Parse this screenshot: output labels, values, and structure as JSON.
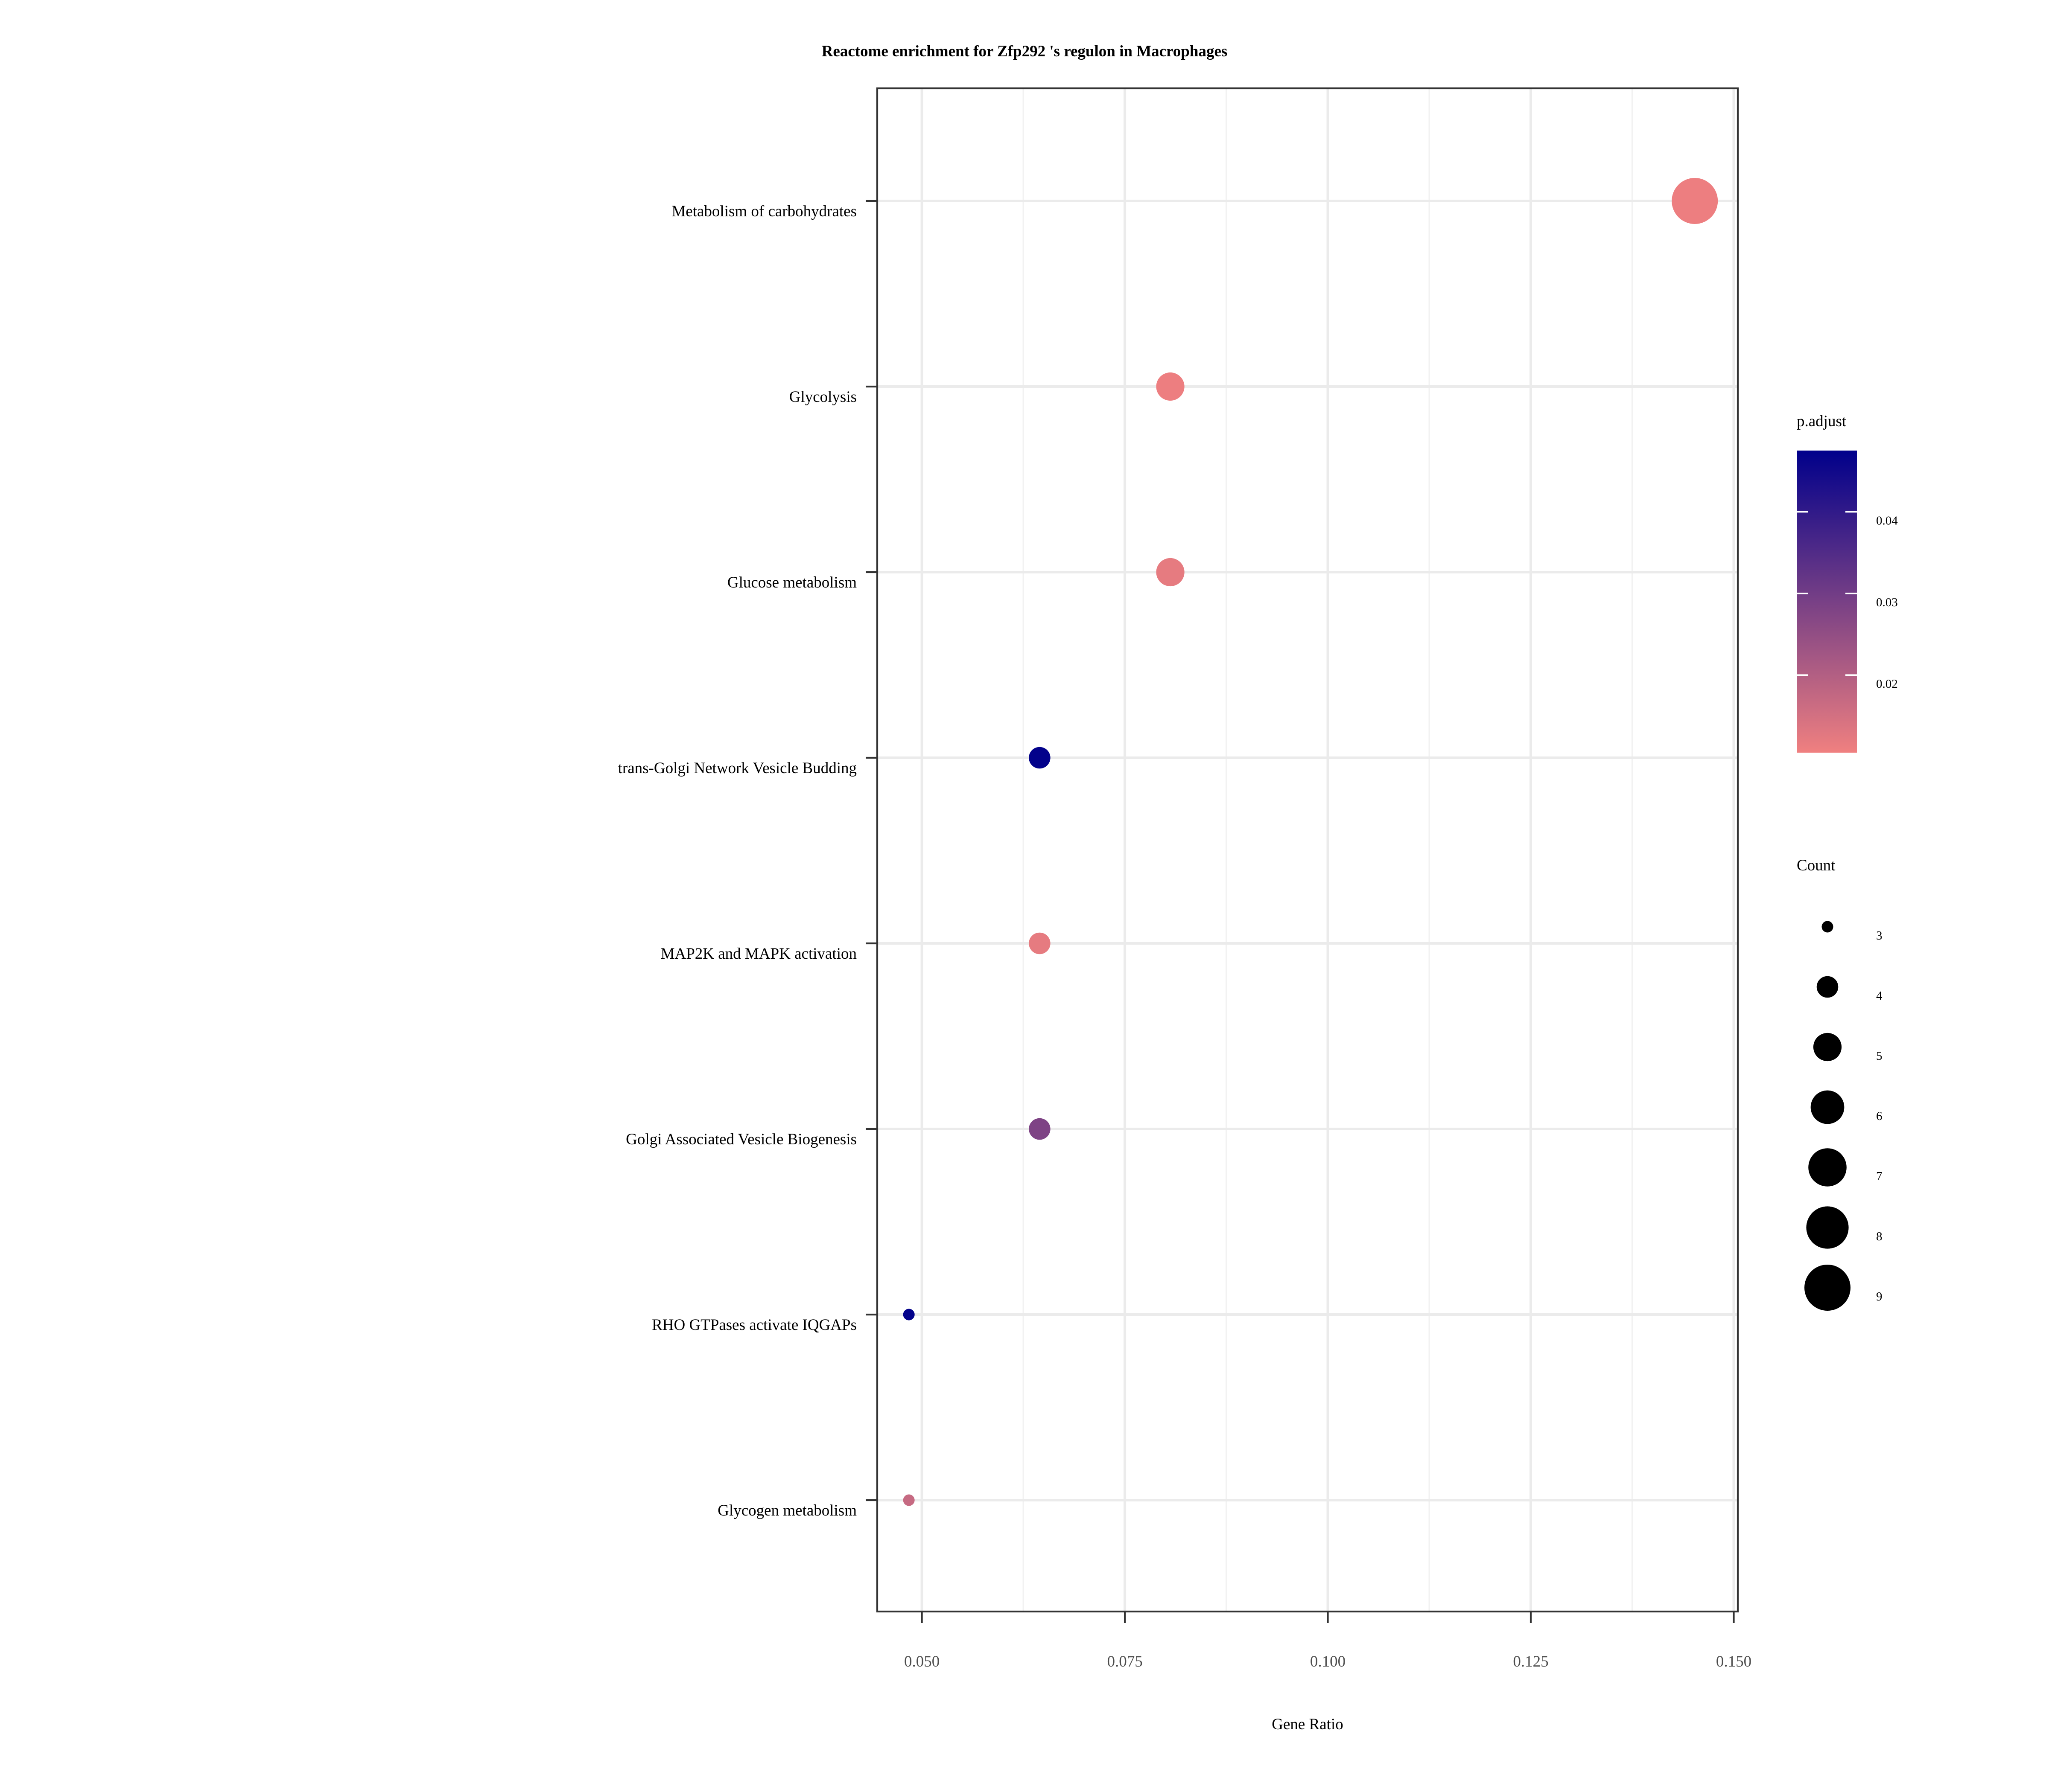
{
  "chart_data": {
    "type": "scatter",
    "title": "Reactome enrichment for Zfp292 's regulon in Macrophages",
    "xlabel": "Gene Ratio",
    "ylabel": "",
    "xlim": [
      0.0445,
      0.1505
    ],
    "x_ticks": [
      0.05,
      0.075,
      0.1,
      0.125,
      0.15
    ],
    "x_tick_labels": [
      "0.050",
      "0.075",
      "0.100",
      "0.125",
      "0.150"
    ],
    "x_minor_ticks": [
      0.0625,
      0.0875,
      0.1125,
      0.1375
    ],
    "grid": true,
    "categories": [
      "Metabolism of carbohydrates",
      "Glycolysis",
      "Glucose metabolism",
      "trans-Golgi Network Vesicle Budding",
      "MAP2K and MAPK activation",
      "Golgi Associated Vesicle Biogenesis",
      "RHO GTPases activate IQGAPs",
      "Glycogen metabolism"
    ],
    "points": [
      {
        "category": "Metabolism of carbohydrates",
        "gene_ratio": 0.1452,
        "count": 9,
        "p_adjust": 0.011
      },
      {
        "category": "Glycolysis",
        "gene_ratio": 0.0806,
        "count": 5,
        "p_adjust": 0.011
      },
      {
        "category": "Glucose metabolism",
        "gene_ratio": 0.0806,
        "count": 5,
        "p_adjust": 0.012
      },
      {
        "category": "trans-Golgi Network Vesicle Budding",
        "gene_ratio": 0.0645,
        "count": 4,
        "p_adjust": 0.047
      },
      {
        "category": "MAP2K and MAPK activation",
        "gene_ratio": 0.0645,
        "count": 4,
        "p_adjust": 0.012
      },
      {
        "category": "Golgi Associated Vesicle Biogenesis",
        "gene_ratio": 0.0645,
        "count": 4,
        "p_adjust": 0.028
      },
      {
        "category": "RHO GTPases activate IQGAPs",
        "gene_ratio": 0.0484,
        "count": 3,
        "p_adjust": 0.047
      },
      {
        "category": "Glycogen metabolism",
        "gene_ratio": 0.0484,
        "count": 3,
        "p_adjust": 0.017
      }
    ],
    "color_legend": {
      "title": "p.adjust",
      "range": [
        0.0105,
        0.0475
      ],
      "low_color": "#F08080",
      "high_color": "#00008B",
      "ticks": [
        0.02,
        0.03,
        0.04
      ],
      "tick_labels": [
        "0.02",
        "0.03",
        "0.04"
      ]
    },
    "size_legend": {
      "title": "Count",
      "values": [
        3,
        4,
        5,
        6,
        7,
        8,
        9
      ],
      "labels": [
        "3",
        "4",
        "5",
        "6",
        "7",
        "8",
        "9"
      ]
    },
    "legend_position": "right"
  }
}
